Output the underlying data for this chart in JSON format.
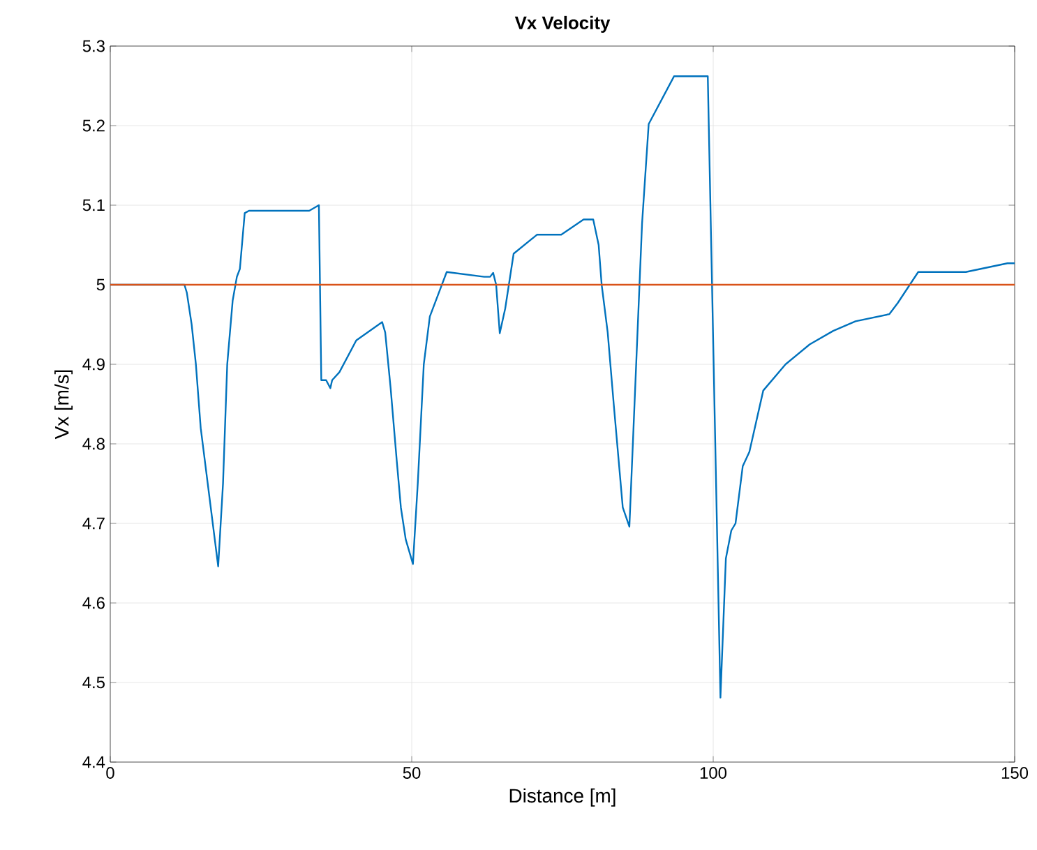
{
  "chart_data": {
    "type": "line",
    "title": "Vx Velocity",
    "xlabel": "Distance [m]",
    "ylabel": "Vx [m/s]",
    "xlim": [
      0,
      150
    ],
    "ylim": [
      4.4,
      5.3
    ],
    "xticks": [
      0,
      50,
      100,
      150
    ],
    "yticks": [
      4.4,
      4.5,
      4.6,
      4.7,
      4.8,
      4.9,
      5,
      5.1,
      5.2,
      5.3
    ],
    "grid": true,
    "series": [
      {
        "color": "#0072bd",
        "x": [
          0,
          12.3,
          12.7,
          13.5,
          14.2,
          15,
          16,
          17.9,
          18.7,
          19.4,
          20.3,
          21,
          21.5,
          22.3,
          23,
          33,
          34.6,
          35,
          35.8,
          36.5,
          36.8,
          38,
          40.8,
          45.1,
          45.6,
          46.5,
          47.5,
          48.2,
          49,
          50.2,
          51,
          52,
          53,
          54.5,
          55.8,
          62,
          63,
          63.5,
          64,
          64.6,
          65.5,
          66.9,
          70.8,
          74.8,
          78.5,
          80.1,
          81,
          81.5,
          82.5,
          83.5,
          85,
          86.1,
          88.2,
          89.3,
          93.5,
          99.1,
          101.2,
          102.1,
          103,
          103.7,
          104.9,
          106,
          108.3,
          112,
          116,
          119.9,
          123.6,
          129.2,
          130.6,
          134,
          141.9,
          148.8,
          150
        ],
        "values": [
          5,
          5,
          4.99,
          4.95,
          4.9,
          4.82,
          4.76,
          4.646,
          4.75,
          4.9,
          4.98,
          5.01,
          5.02,
          5.09,
          5.093,
          5.093,
          5.1,
          4.88,
          4.88,
          4.87,
          4.88,
          4.89,
          4.93,
          4.953,
          4.94,
          4.87,
          4.78,
          4.72,
          4.68,
          4.649,
          4.75,
          4.9,
          4.96,
          4.99,
          5.016,
          5.01,
          5.01,
          5.015,
          5,
          4.939,
          4.97,
          5.039,
          5.063,
          5.063,
          5.082,
          5.082,
          5.05,
          5,
          4.94,
          4.85,
          4.72,
          4.696,
          5.077,
          5.202,
          5.262,
          5.262,
          4.481,
          4.656,
          4.691,
          4.7,
          4.772,
          4.79,
          4.867,
          4.9,
          4.925,
          4.942,
          4.954,
          4.963,
          4.977,
          5.016,
          5.016,
          5.027,
          5.027
        ]
      },
      {
        "color": "#d95319",
        "x": [
          0,
          150
        ],
        "values": [
          5,
          5
        ]
      }
    ]
  }
}
